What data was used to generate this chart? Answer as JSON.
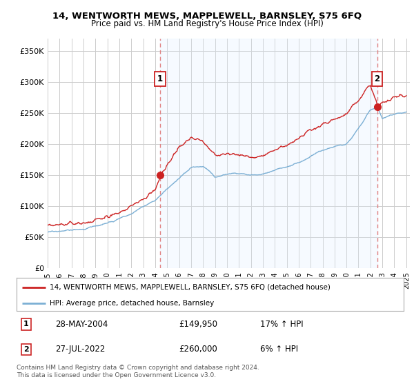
{
  "title": "14, WENTWORTH MEWS, MAPPLEWELL, BARNSLEY, S75 6FQ",
  "subtitle": "Price paid vs. HM Land Registry's House Price Index (HPI)",
  "ylabel_ticks": [
    "£0",
    "£50K",
    "£100K",
    "£150K",
    "£200K",
    "£250K",
    "£300K",
    "£350K"
  ],
  "ylim": [
    0,
    370000
  ],
  "yticks": [
    0,
    50000,
    100000,
    150000,
    200000,
    250000,
    300000,
    350000
  ],
  "sale1": {
    "date": 2004.41,
    "price": 149950,
    "label": "1",
    "date_str": "28-MAY-2004",
    "price_str": "£149,950",
    "pct": "17% ↑ HPI"
  },
  "sale2": {
    "date": 2022.56,
    "price": 260000,
    "label": "2",
    "date_str": "27-JUL-2022",
    "price_str": "£260,000",
    "pct": "6% ↑ HPI"
  },
  "legend_line1": "14, WENTWORTH MEWS, MAPPLEWELL, BARNSLEY, S75 6FQ (detached house)",
  "legend_line2": "HPI: Average price, detached house, Barnsley",
  "footer": "Contains HM Land Registry data © Crown copyright and database right 2024.\nThis data is licensed under the Open Government Licence v3.0.",
  "hpi_color": "#7bafd4",
  "price_color": "#cc2222",
  "dashed_color": "#e08080",
  "fill_color": "#ddeeff",
  "background": "#ffffff",
  "grid_color": "#cccccc",
  "label_box_color": "#cc2222",
  "xlim_start": 1995,
  "xlim_end": 2025.3
}
